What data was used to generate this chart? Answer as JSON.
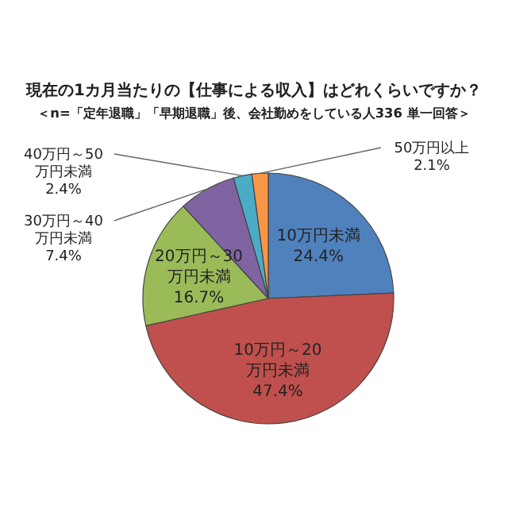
{
  "chart_data": {
    "type": "pie",
    "title": "現在の1カ月当たりの【仕事による収入】はどれくらいですか？",
    "subtitle": "＜n=「定年退職」「早期退職」後、会社勤めをしている人336  単一回答＞",
    "categories": [
      "10万円未満",
      "10万円～20万円未満",
      "20万円～30万円未満",
      "30万円～40万円未満",
      "40万円～50万円未満",
      "50万円以上"
    ],
    "values": [
      24.4,
      47.4,
      16.7,
      7.4,
      2.4,
      2.1
    ],
    "colors": [
      "#4f81bd",
      "#c0504d",
      "#9bbb59",
      "#8064a2",
      "#4bacc6",
      "#f79646"
    ],
    "value_labels": [
      "24.4%",
      "47.4%",
      "16.7%",
      "7.4%",
      "2.4%",
      "2.1%"
    ]
  }
}
